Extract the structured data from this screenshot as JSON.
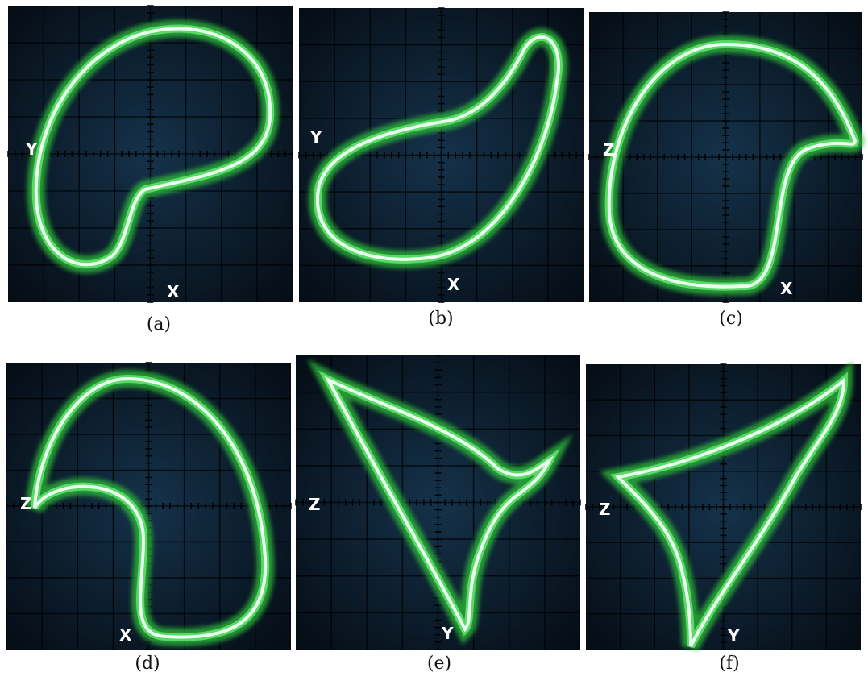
{
  "panels": [
    {
      "vertical_label": "Y",
      "horizontal_label": "X",
      "caption": "(a)"
    },
    {
      "vertical_label": "Y",
      "horizontal_label": "X",
      "caption": "(b)"
    },
    {
      "vertical_label": "Z",
      "horizontal_label": "X",
      "caption": "(c)"
    },
    {
      "vertical_label": "Z",
      "horizontal_label": "X",
      "caption": "(d)"
    },
    {
      "vertical_label": "Z",
      "horizontal_label": "Y",
      "caption": "(e)"
    },
    {
      "vertical_label": "Z",
      "horizontal_label": "Y",
      "caption": "(f)"
    }
  ]
}
